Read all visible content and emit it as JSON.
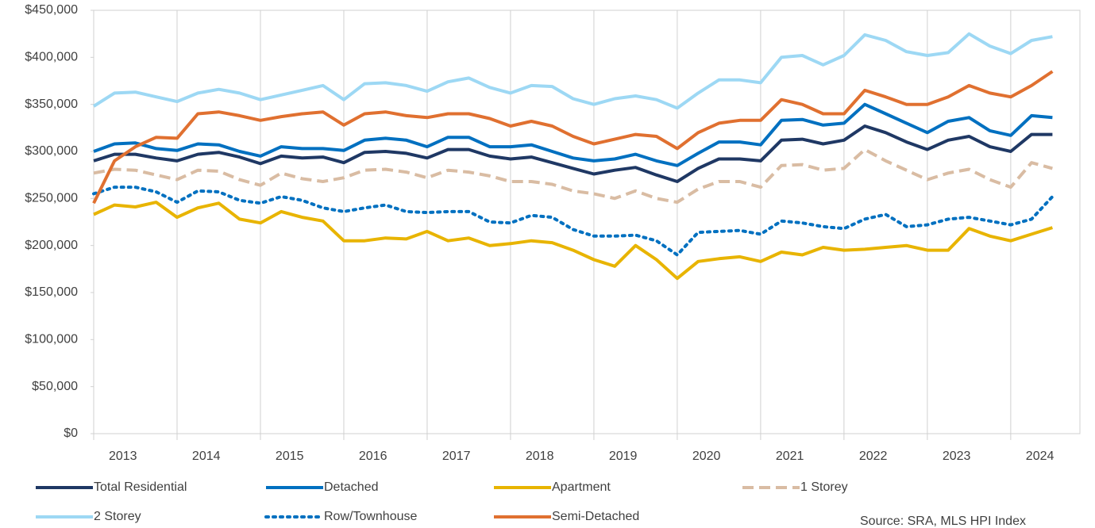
{
  "chart_data": {
    "type": "line",
    "source": "Source: SRA, MLS HPI Index",
    "x": [
      2013,
      2013.25,
      2013.5,
      2013.75,
      2014,
      2014.25,
      2014.5,
      2014.75,
      2015,
      2015.25,
      2015.5,
      2015.75,
      2016,
      2016.25,
      2016.5,
      2016.75,
      2017,
      2017.25,
      2017.5,
      2017.75,
      2018,
      2018.25,
      2018.5,
      2018.75,
      2019,
      2019.25,
      2019.5,
      2019.75,
      2020,
      2020.25,
      2020.5,
      2020.75,
      2021,
      2021.25,
      2021.5,
      2021.75,
      2022,
      2022.25,
      2022.5,
      2022.75,
      2023,
      2023.25,
      2023.5,
      2023.75,
      2024,
      2024.25,
      2024.5
    ],
    "xlim": [
      2013,
      2024.83
    ],
    "xticks": [
      {
        "value": 2013,
        "label": "2013"
      },
      {
        "value": 2014,
        "label": "2014"
      },
      {
        "value": 2015,
        "label": "2015"
      },
      {
        "value": 2016,
        "label": "2016"
      },
      {
        "value": 2017,
        "label": "2017"
      },
      {
        "value": 2018,
        "label": "2018"
      },
      {
        "value": 2019,
        "label": "2019"
      },
      {
        "value": 2020,
        "label": "2020"
      },
      {
        "value": 2021,
        "label": "2021"
      },
      {
        "value": 2022,
        "label": "2022"
      },
      {
        "value": 2023,
        "label": "2023"
      },
      {
        "value": 2024,
        "label": "2024"
      }
    ],
    "ylim": [
      0,
      450000
    ],
    "yticks": [
      {
        "value": 0,
        "label": "$0"
      },
      {
        "value": 50000,
        "label": "$50,000"
      },
      {
        "value": 100000,
        "label": "$100,000"
      },
      {
        "value": 150000,
        "label": "$150,000"
      },
      {
        "value": 200000,
        "label": "$200,000"
      },
      {
        "value": 250000,
        "label": "$250,000"
      },
      {
        "value": 300000,
        "label": "$300,000"
      },
      {
        "value": 350000,
        "label": "$350,000"
      },
      {
        "value": 400000,
        "label": "$400,000"
      },
      {
        "value": 450000,
        "label": "$450,000"
      }
    ],
    "grid": "x",
    "series": [
      {
        "name": "Total Residential",
        "color": "#1f3864",
        "dash": "solid",
        "values": [
          290000,
          297000,
          297000,
          293000,
          290000,
          297000,
          299000,
          294000,
          287000,
          295000,
          293000,
          294000,
          288000,
          299000,
          300000,
          298000,
          293000,
          302000,
          302000,
          295000,
          292000,
          294000,
          288000,
          282000,
          276000,
          280000,
          283000,
          275000,
          268000,
          282000,
          292000,
          292000,
          290000,
          312000,
          313000,
          308000,
          312000,
          327000,
          320000,
          310000,
          302000,
          312000,
          316000,
          305000,
          300000,
          318000,
          318000
        ]
      },
      {
        "name": "Detached",
        "color": "#0070c0",
        "dash": "solid",
        "values": [
          300000,
          308000,
          309000,
          303000,
          301000,
          308000,
          307000,
          300000,
          295000,
          305000,
          303000,
          303000,
          301000,
          312000,
          314000,
          312000,
          305000,
          315000,
          315000,
          305000,
          305000,
          307000,
          300000,
          293000,
          290000,
          292000,
          297000,
          290000,
          285000,
          298000,
          310000,
          310000,
          307000,
          333000,
          334000,
          328000,
          330000,
          350000,
          340000,
          330000,
          320000,
          332000,
          336000,
          322000,
          317000,
          338000,
          336000
        ]
      },
      {
        "name": "Apartment",
        "color": "#e8b400",
        "dash": "solid",
        "values": [
          233000,
          243000,
          241000,
          246000,
          230000,
          240000,
          245000,
          228000,
          224000,
          236000,
          230000,
          226000,
          205000,
          205000,
          208000,
          207000,
          215000,
          205000,
          208000,
          200000,
          202000,
          205000,
          203000,
          195000,
          185000,
          178000,
          200000,
          185000,
          165000,
          183000,
          186000,
          188000,
          183000,
          193000,
          190000,
          198000,
          195000,
          196000,
          198000,
          200000,
          195000,
          195000,
          218000,
          210000,
          205000,
          212000,
          219000
        ]
      },
      {
        "name": "1 Storey",
        "color": "#d9bca3",
        "dash": "dashed",
        "values": [
          277000,
          281000,
          280000,
          275000,
          270000,
          280000,
          279000,
          270000,
          264000,
          277000,
          271000,
          268000,
          272000,
          280000,
          281000,
          278000,
          272000,
          280000,
          278000,
          274000,
          268000,
          268000,
          265000,
          258000,
          255000,
          250000,
          258000,
          250000,
          246000,
          260000,
          268000,
          268000,
          262000,
          285000,
          286000,
          280000,
          282000,
          302000,
          290000,
          280000,
          270000,
          277000,
          281000,
          270000,
          262000,
          288000,
          282000
        ]
      },
      {
        "name": "2 Storey",
        "color": "#9dd8f4",
        "dash": "solid",
        "values": [
          348000,
          362000,
          363000,
          358000,
          353000,
          362000,
          366000,
          362000,
          355000,
          360000,
          365000,
          370000,
          355000,
          372000,
          373000,
          370000,
          364000,
          374000,
          378000,
          368000,
          362000,
          370000,
          369000,
          356000,
          350000,
          356000,
          359000,
          355000,
          346000,
          362000,
          376000,
          376000,
          373000,
          400000,
          402000,
          392000,
          402000,
          424000,
          418000,
          406000,
          402000,
          405000,
          425000,
          412000,
          404000,
          418000,
          422000
        ]
      },
      {
        "name": "Row/Townhouse",
        "color": "#0070c0",
        "dash": "dotted",
        "values": [
          255000,
          262000,
          262000,
          257000,
          246000,
          258000,
          257000,
          248000,
          245000,
          252000,
          248000,
          240000,
          236000,
          240000,
          243000,
          236000,
          235000,
          236000,
          236000,
          225000,
          224000,
          232000,
          230000,
          217000,
          210000,
          210000,
          211000,
          205000,
          190000,
          214000,
          215000,
          216000,
          212000,
          226000,
          224000,
          220000,
          218000,
          228000,
          233000,
          220000,
          222000,
          228000,
          230000,
          226000,
          222000,
          228000,
          252000
        ]
      },
      {
        "name": "Semi-Detached",
        "color": "#e07030",
        "dash": "solid",
        "values": [
          245000,
          290000,
          305000,
          315000,
          314000,
          340000,
          342000,
          338000,
          333000,
          337000,
          340000,
          342000,
          328000,
          340000,
          342000,
          338000,
          336000,
          340000,
          340000,
          335000,
          327000,
          332000,
          327000,
          316000,
          308000,
          313000,
          318000,
          316000,
          303000,
          320000,
          330000,
          333000,
          333000,
          355000,
          350000,
          340000,
          340000,
          365000,
          358000,
          350000,
          350000,
          358000,
          370000,
          362000,
          358000,
          370000,
          385000
        ]
      }
    ]
  }
}
